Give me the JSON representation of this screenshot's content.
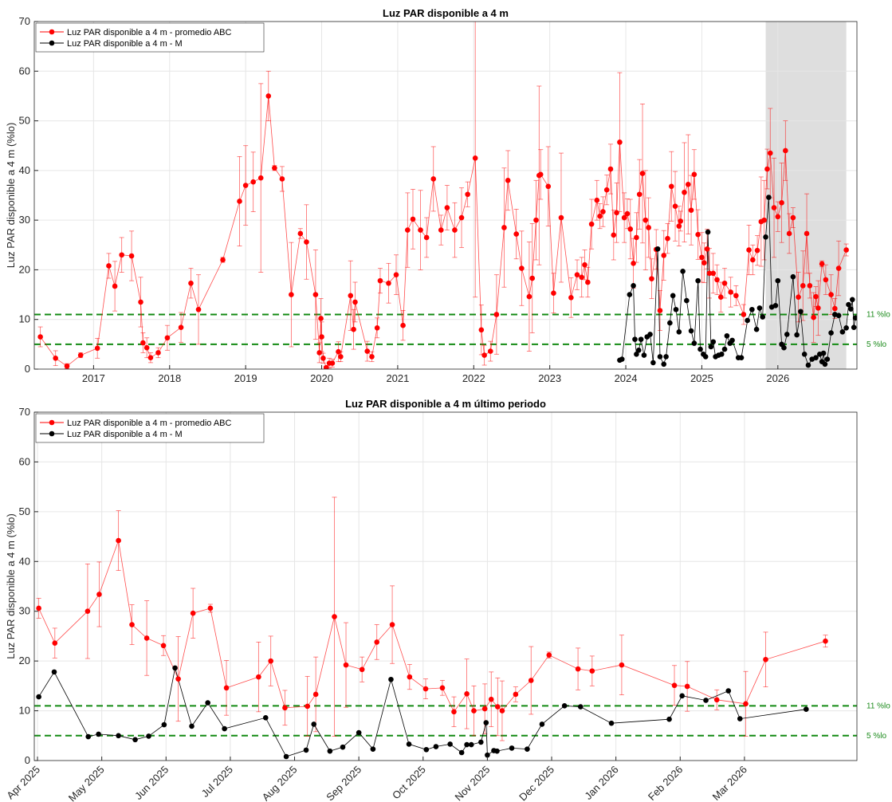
{
  "chart_data": [
    {
      "type": "line",
      "title": "Luz PAR disponible a 4 m",
      "ylabel": "Luz PAR disponible a 4 m (%lo)",
      "xlim": [
        2016.22,
        2027.04
      ],
      "xticks": [
        2017,
        2018,
        2019,
        2020,
        2021,
        2022,
        2023,
        2024,
        2025,
        2026
      ],
      "ylim": [
        0,
        70
      ],
      "yticks": [
        0,
        10,
        20,
        30,
        40,
        50,
        60,
        70
      ],
      "grid": true,
      "legend": "upper left",
      "shade": [
        2025.84,
        2026.9
      ],
      "hlines": [
        {
          "value": 11,
          "label": "11 %lo",
          "color": "#138a13"
        },
        {
          "value": 5,
          "label": "5 %lo",
          "color": "#138a13"
        }
      ],
      "series": [
        {
          "name": "Luz PAR disponible a 4 m - promedio ABC",
          "color": "#ff0000",
          "x": [
            2016.3,
            2016.5,
            2016.65,
            2016.83,
            2017.05,
            2017.2,
            2017.28,
            2017.37,
            2017.5,
            2017.62,
            2017.65,
            2017.7,
            2017.75,
            2017.85,
            2017.97,
            2018.15,
            2018.28,
            2018.38,
            2018.7,
            2018.92,
            2019.0,
            2019.1,
            2019.2,
            2019.3,
            2019.38,
            2019.48,
            2019.6,
            2019.72,
            2019.8,
            2019.92,
            2019.97,
            2019.99,
            2020.0,
            2020.02,
            2020.06,
            2020.1,
            2020.14,
            2020.22,
            2020.25,
            2020.38,
            2020.42,
            2020.44,
            2020.6,
            2020.66,
            2020.73,
            2020.77,
            2020.88,
            2020.98,
            2021.07,
            2021.13,
            2021.2,
            2021.3,
            2021.38,
            2021.47,
            2021.57,
            2021.65,
            2021.75,
            2021.84,
            2021.92,
            2022.02,
            2022.1,
            2022.14,
            2022.22,
            2022.3,
            2022.4,
            2022.45,
            2022.56,
            2022.63,
            2022.73,
            2022.77,
            2022.82,
            2022.86,
            2022.88,
            2022.98,
            2023.05,
            2023.15,
            2023.28,
            2023.36,
            2023.42,
            2023.46,
            2023.5,
            2023.55,
            2023.62,
            2023.66,
            2023.7,
            2023.75,
            2023.8,
            2023.84,
            2023.88,
            2023.92,
            2023.98,
            2024.02,
            2024.06,
            2024.1,
            2024.14,
            2024.18,
            2024.22,
            2024.26,
            2024.3,
            2024.34,
            2024.4,
            2024.45,
            2024.5,
            2024.55,
            2024.6,
            2024.65,
            2024.7,
            2024.72,
            2024.77,
            2024.82,
            2024.86,
            2024.9,
            2024.95,
            2025.0,
            2025.03,
            2025.07,
            2025.1,
            2025.15,
            2025.2,
            2025.25,
            2025.3,
            2025.38,
            2025.45,
            2025.55,
            2025.62,
            2025.67,
            2025.73,
            2025.78,
            2025.82,
            2025.86,
            2025.9,
            2025.95,
            2026.0,
            2026.05,
            2026.1,
            2026.15,
            2026.2,
            2026.27,
            2026.33,
            2026.38,
            2026.42,
            2026.47,
            2026.5,
            2026.53,
            2026.58,
            2026.63,
            2026.7,
            2026.75,
            2026.8,
            2026.9
          ],
          "values": [
            6.5,
            2.2,
            0.6,
            2.8,
            4.2,
            20.8,
            16.7,
            23,
            22.8,
            13.5,
            5.3,
            4.3,
            2.3,
            3.3,
            6.3,
            8.4,
            17.3,
            12,
            22,
            33.8,
            37,
            37.7,
            38.5,
            55,
            40.5,
            38.3,
            15,
            27.3,
            25.6,
            15,
            3.3,
            10.2,
            6.5,
            2.2,
            0.3,
            1.2,
            1.2,
            3.5,
            2.5,
            14.8,
            8,
            13.5,
            3.6,
            2.5,
            8.3,
            17.8,
            17.3,
            19,
            8.8,
            28,
            30.2,
            28,
            26.5,
            38.3,
            28,
            32.5,
            28,
            30.5,
            35.2,
            42.5,
            7.9,
            2.8,
            3.6,
            11,
            28.5,
            38,
            27.2,
            20.3,
            14.6,
            18.3,
            30,
            39,
            39.2,
            36.8,
            15.3,
            30.5,
            14.4,
            19,
            18.5,
            21,
            17.5,
            29.2,
            34,
            30.8,
            31.7,
            36.1,
            40.3,
            27,
            31.5,
            45.7,
            30.5,
            31.3,
            28.2,
            21.3,
            26.5,
            35.2,
            39.4,
            30,
            28.5,
            18.2,
            24.1,
            11.8,
            22.9,
            26.3,
            36.8,
            32.8,
            28.8,
            29.8,
            35.6,
            37.2,
            32,
            39.2,
            27.1,
            22.5,
            21.4,
            24.2,
            19.3,
            19.3,
            18,
            14.5,
            17.3,
            15.5,
            14.8,
            11,
            24,
            22,
            23.9,
            29.7,
            30,
            40.3,
            43.5,
            32.5,
            30.7,
            33.5,
            44,
            27.3,
            30.5,
            14.5,
            16.8,
            27.3,
            16.8,
            10.4,
            14.6,
            12.3,
            21.2,
            18,
            15,
            12.2,
            20.3,
            24
          ],
          "errors": [
            2,
            1.5,
            0.5,
            0.5,
            2,
            2.5,
            5,
            3.5,
            5,
            5,
            2,
            2,
            1,
            1,
            2.5,
            3,
            3,
            7,
            0.5,
            9,
            8,
            6,
            19,
            5,
            0.5,
            2.5,
            10.5,
            1,
            7.5,
            9,
            2,
            4,
            3,
            1,
            0.3,
            1,
            0.8,
            2,
            1,
            7,
            4,
            4,
            2,
            1,
            2,
            2.5,
            4,
            4,
            3,
            7.5,
            6,
            8,
            4,
            6.5,
            3,
            4.5,
            5.5,
            6,
            2.5,
            28,
            5,
            2,
            2,
            8,
            12,
            6,
            5,
            7.5,
            11,
            11,
            8,
            18,
            5,
            8,
            4,
            13,
            4,
            3,
            4,
            3,
            3,
            5,
            4,
            2.5,
            3,
            3,
            5,
            5,
            6,
            14,
            5,
            3,
            6,
            5,
            5,
            7,
            14,
            10,
            6,
            4,
            4,
            4,
            5,
            3,
            7,
            7,
            4,
            2,
            10,
            10,
            7,
            5,
            5,
            5,
            4,
            4,
            5,
            4,
            3,
            3,
            3,
            3,
            2,
            2,
            5,
            3,
            3,
            9,
            8,
            4,
            9,
            10,
            3,
            8,
            6,
            4,
            2,
            5,
            7,
            8,
            2.5,
            5,
            2,
            5.5,
            0.6,
            3,
            4,
            2,
            5.5,
            1.2
          ]
        },
        {
          "name": "Luz PAR disponible a 4 m - M",
          "color": "#000000",
          "x": [
            2023.92,
            2023.95,
            2024.05,
            2024.1,
            2024.12,
            2024.14,
            2024.17,
            2024.2,
            2024.24,
            2024.28,
            2024.32,
            2024.36,
            2024.42,
            2024.45,
            2024.5,
            2024.53,
            2024.58,
            2024.62,
            2024.66,
            2024.7,
            2024.75,
            2024.8,
            2024.86,
            2024.9,
            2024.95,
            2024.98,
            2025.02,
            2025.05,
            2025.08,
            2025.12,
            2025.15,
            2025.18,
            2025.22,
            2025.26,
            2025.3,
            2025.33,
            2025.37,
            2025.4,
            2025.48,
            2025.52,
            2025.6,
            2025.66,
            2025.72,
            2025.76,
            2025.8,
            2025.84,
            2025.88,
            2025.92,
            2025.97,
            2026.0,
            2026.05,
            2026.08,
            2026.12,
            2026.2,
            2026.25,
            2026.3,
            2026.35,
            2026.4,
            2026.45,
            2026.5,
            2026.55,
            2026.58,
            2026.6,
            2026.62,
            2026.65,
            2026.7,
            2026.75,
            2026.8,
            2026.85,
            2026.9,
            2026.93,
            2026.96,
            2026.98,
            2027.0,
            2027.02
          ],
          "values": [
            1.8,
            2,
            15,
            16.8,
            6,
            3,
            3.8,
            6,
            2.8,
            6.5,
            7,
            1.3,
            24.2,
            2.5,
            1,
            2.5,
            9.3,
            14.8,
            12,
            7.5,
            19.7,
            13.8,
            7.7,
            5.2,
            17.8,
            4,
            3,
            2.5,
            27.6,
            4.5,
            5.5,
            2.5,
            2.8,
            3,
            4,
            6.7,
            5.2,
            5.8,
            2.3,
            2.3,
            9.8,
            12,
            8,
            12.3,
            10.5,
            26.6,
            34.6,
            12.5,
            12.8,
            17.8,
            5,
            4.3,
            7,
            18.6,
            6.9,
            11.6,
            3,
            0.8,
            2,
            2.3,
            3,
            1.5,
            3.2,
            1,
            2,
            7.3,
            11,
            10.8,
            7.5,
            8.3,
            13,
            12.1,
            14,
            8.4,
            10.3
          ]
        }
      ]
    },
    {
      "type": "line",
      "title": "Luz PAR disponible a 4 m último periodo",
      "ylabel": "Luz PAR disponible a 4 m (%lo)",
      "xlim": [
        -0.05,
        12.75
      ],
      "xticks": [
        {
          "value": 0,
          "label": "Apr 2025"
        },
        {
          "value": 1,
          "label": "May 2025"
        },
        {
          "value": 2,
          "label": "Jun 2025"
        },
        {
          "value": 3,
          "label": "Jul 2025"
        },
        {
          "value": 4,
          "label": "Aug 2025"
        },
        {
          "value": 5,
          "label": "Sep 2025"
        },
        {
          "value": 6,
          "label": "Oct 2025"
        },
        {
          "value": 7,
          "label": "Nov 2025"
        },
        {
          "value": 8,
          "label": "Dec 2025"
        },
        {
          "value": 9,
          "label": "Jan 2026"
        },
        {
          "value": 10,
          "label": "Feb 2026"
        },
        {
          "value": 11,
          "label": "Mar 2026"
        }
      ],
      "ylim": [
        0,
        70
      ],
      "yticks": [
        0,
        10,
        20,
        30,
        40,
        50,
        60,
        70
      ],
      "grid": true,
      "legend": "upper left",
      "hlines": [
        {
          "value": 11,
          "label": "11 %lo",
          "color": "#138a13"
        },
        {
          "value": 5,
          "label": "5 %lo",
          "color": "#138a13"
        }
      ],
      "series": [
        {
          "name": "Luz PAR disponible a 4 m - promedio ABC",
          "color": "#ff0000",
          "x": [
            0.02,
            0.27,
            0.78,
            0.96,
            1.26,
            1.47,
            1.7,
            1.96,
            2.19,
            2.42,
            2.69,
            2.94,
            3.44,
            3.63,
            3.85,
            4.2,
            4.33,
            4.62,
            4.8,
            5.05,
            5.28,
            5.52,
            5.79,
            6.04,
            6.3,
            6.48,
            6.68,
            6.79,
            6.96,
            7.06,
            7.16,
            7.23,
            7.44,
            7.68,
            7.96,
            8.41,
            8.63,
            9.09,
            9.91,
            10.11,
            10.57,
            11.02,
            11.33,
            12.26
          ],
          "values": [
            30.6,
            23.6,
            30,
            33.4,
            44.2,
            27.3,
            24.6,
            23.1,
            16.4,
            29.6,
            30.6,
            14.6,
            16.8,
            20,
            10.6,
            10.9,
            13.3,
            28.9,
            19.2,
            18.3,
            23.8,
            27.3,
            16.8,
            14.4,
            14.6,
            9.8,
            13.4,
            10,
            10.4,
            12.3,
            10.8,
            10,
            13.3,
            16.1,
            21.2,
            18.4,
            18,
            19.2,
            15.1,
            14.9,
            12.2,
            11.4,
            20.3,
            24
          ],
          "errors": [
            2,
            3,
            9.5,
            6.5,
            6,
            4,
            7.5,
            2,
            8.5,
            5,
            0.8,
            5.5,
            7,
            5,
            3.5,
            6,
            7.5,
            24,
            8.5,
            2.5,
            3.5,
            7.8,
            2.5,
            2,
            1.5,
            3,
            7,
            5,
            5,
            5.5,
            5.8,
            6,
            1.5,
            6.8,
            0.6,
            4.2,
            3,
            6,
            4,
            5,
            2,
            6.5,
            5.5,
            1.2
          ]
        },
        {
          "name": "Luz PAR disponible a 4 m - M",
          "color": "#000000",
          "x": [
            0.02,
            0.26,
            0.79,
            0.95,
            1.26,
            1.52,
            1.73,
            1.97,
            2.14,
            2.4,
            2.65,
            2.91,
            3.55,
            3.87,
            4.18,
            4.3,
            4.55,
            4.75,
            5.0,
            5.22,
            5.5,
            5.78,
            6.05,
            6.2,
            6.42,
            6.6,
            6.68,
            6.75,
            6.9,
            6.98,
            7.0,
            7.1,
            7.15,
            7.38,
            7.62,
            7.85,
            8.2,
            8.45,
            8.93,
            9.83,
            10.03,
            10.4,
            10.75,
            10.93,
            11.96
          ],
          "values": [
            12.8,
            17.8,
            4.8,
            5.3,
            5,
            4.2,
            4.9,
            7.2,
            18.6,
            6.9,
            11.6,
            6.4,
            8.6,
            0.8,
            2.1,
            7.3,
            1.9,
            2.7,
            5.6,
            2.3,
            16.3,
            3.3,
            2.2,
            2.8,
            3.3,
            1.6,
            3.2,
            3.2,
            3.7,
            7.6,
            1.1,
            2,
            1.9,
            2.5,
            2.3,
            7.3,
            11,
            10.8,
            7.5,
            8.3,
            13,
            12.1,
            14,
            8.4,
            10.3
          ]
        }
      ]
    }
  ]
}
